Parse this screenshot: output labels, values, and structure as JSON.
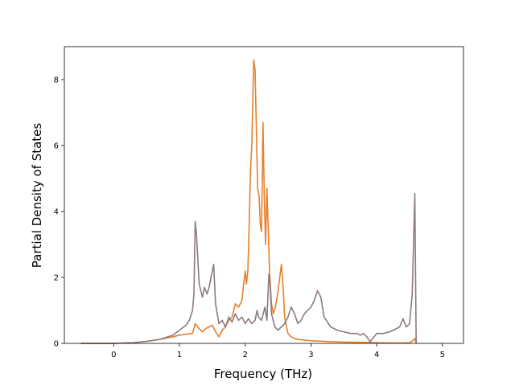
{
  "chart_data": {
    "type": "line",
    "title": "",
    "xlabel": "Frequency (THz)",
    "ylabel": "Partial Density of States",
    "xlim": [
      -0.75,
      5.32
    ],
    "ylim": [
      0,
      9.0
    ],
    "xticks": [
      0,
      1,
      2,
      3,
      4,
      5
    ],
    "yticks": [
      0,
      2,
      4,
      6,
      8
    ],
    "grid": false,
    "legend": "none",
    "series": [
      {
        "color": "#e6802a",
        "x": [
          -0.5,
          0.0,
          0.3,
          0.5,
          0.7,
          0.9,
          1.0,
          1.1,
          1.2,
          1.24,
          1.3,
          1.35,
          1.4,
          1.45,
          1.5,
          1.55,
          1.6,
          1.65,
          1.7,
          1.75,
          1.8,
          1.85,
          1.9,
          1.95,
          2.0,
          2.02,
          2.04,
          2.06,
          2.08,
          2.1,
          2.13,
          2.15,
          2.17,
          2.19,
          2.21,
          2.23,
          2.25,
          2.27,
          2.29,
          2.31,
          2.33,
          2.35,
          2.37,
          2.4,
          2.43,
          2.46,
          2.5,
          2.55,
          2.58,
          2.6,
          2.65,
          2.7,
          2.75,
          2.8,
          2.9,
          3.0,
          3.2,
          3.5,
          3.8,
          4.0,
          4.2,
          4.4,
          4.5,
          4.56,
          4.58,
          4.6
        ],
        "values": [
          0,
          0,
          0.02,
          0.06,
          0.12,
          0.2,
          0.25,
          0.28,
          0.3,
          0.6,
          0.45,
          0.35,
          0.45,
          0.5,
          0.55,
          0.35,
          0.2,
          0.4,
          0.5,
          0.7,
          0.8,
          1.2,
          1.1,
          1.3,
          2.2,
          1.8,
          2.2,
          3.5,
          5.2,
          6.0,
          8.6,
          8.3,
          6.5,
          4.7,
          4.5,
          3.6,
          3.4,
          6.7,
          4.5,
          3.0,
          4.7,
          3.5,
          2.2,
          1.2,
          0.9,
          1.1,
          1.6,
          2.4,
          1.6,
          0.8,
          0.3,
          0.2,
          0.15,
          0.12,
          0.1,
          0.08,
          0.06,
          0.04,
          0.03,
          0.02,
          0.01,
          0.01,
          0.02,
          0.1,
          0.15,
          0.0
        ]
      },
      {
        "color": "#8c7b80",
        "x": [
          -0.5,
          0.0,
          0.3,
          0.5,
          0.7,
          0.9,
          1.0,
          1.1,
          1.15,
          1.2,
          1.22,
          1.24,
          1.26,
          1.3,
          1.35,
          1.38,
          1.42,
          1.45,
          1.5,
          1.52,
          1.55,
          1.6,
          1.65,
          1.7,
          1.75,
          1.8,
          1.85,
          1.9,
          1.95,
          2.0,
          2.05,
          2.1,
          2.15,
          2.18,
          2.2,
          2.25,
          2.3,
          2.33,
          2.36,
          2.38,
          2.4,
          2.45,
          2.5,
          2.55,
          2.6,
          2.65,
          2.7,
          2.75,
          2.8,
          2.85,
          2.9,
          2.95,
          3.0,
          3.05,
          3.1,
          3.15,
          3.2,
          3.3,
          3.4,
          3.5,
          3.6,
          3.7,
          3.75,
          3.8,
          3.85,
          3.9,
          4.0,
          4.1,
          4.2,
          4.3,
          4.35,
          4.4,
          4.45,
          4.5,
          4.54,
          4.56,
          4.58,
          4.6
        ],
        "values": [
          0,
          0,
          0.02,
          0.06,
          0.12,
          0.25,
          0.4,
          0.55,
          0.7,
          1.0,
          1.5,
          3.7,
          3.3,
          1.8,
          1.4,
          1.7,
          1.5,
          1.7,
          2.2,
          2.4,
          1.2,
          0.6,
          0.7,
          0.5,
          0.8,
          0.65,
          0.9,
          0.7,
          0.8,
          0.6,
          0.75,
          0.6,
          0.7,
          1.0,
          0.8,
          0.7,
          1.1,
          0.7,
          2.1,
          1.7,
          0.9,
          0.5,
          0.4,
          0.5,
          0.6,
          0.8,
          1.1,
          0.9,
          0.6,
          0.7,
          0.9,
          1.0,
          1.1,
          1.3,
          1.6,
          1.4,
          0.8,
          0.5,
          0.4,
          0.35,
          0.3,
          0.3,
          0.25,
          0.3,
          0.2,
          0.05,
          0.3,
          0.3,
          0.35,
          0.45,
          0.5,
          0.75,
          0.5,
          0.6,
          1.5,
          3.0,
          4.55,
          0.0
        ]
      }
    ]
  }
}
